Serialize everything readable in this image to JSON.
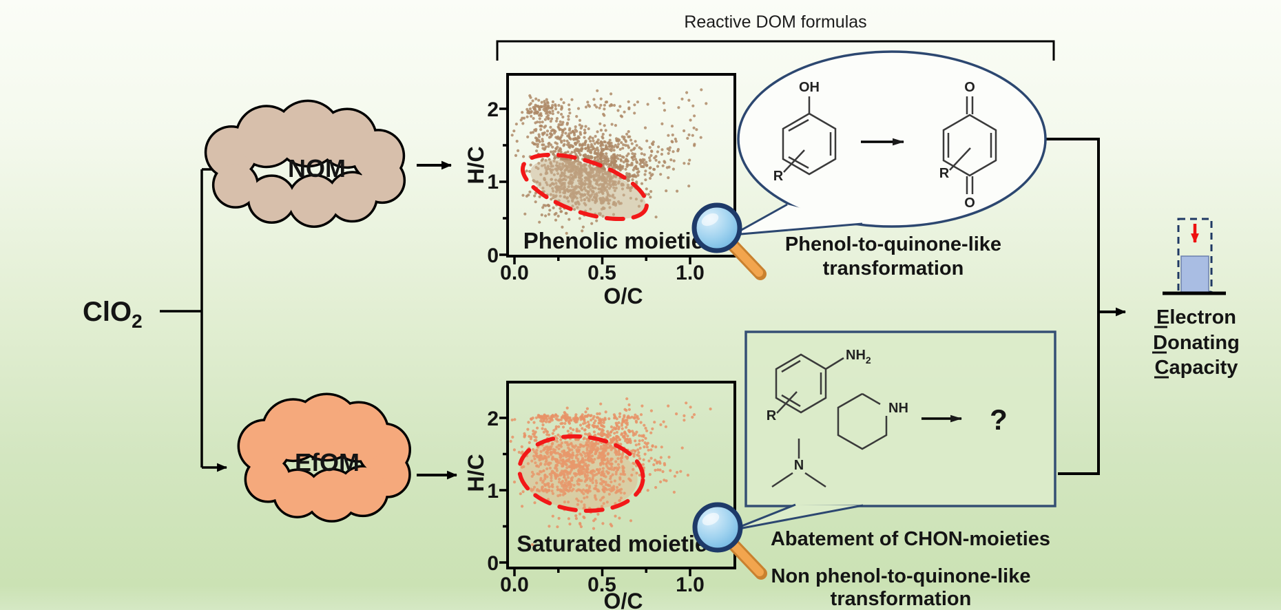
{
  "header": {
    "bracket_label": "Reactive DOM formulas"
  },
  "reagent": {
    "base": "ClO",
    "sub": "2"
  },
  "clouds": [
    {
      "id": "nom",
      "label": "NOM",
      "fill": "#d7bfab"
    },
    {
      "id": "efom",
      "label": "EfOM",
      "fill": "#f5a97c"
    }
  ],
  "edc": {
    "line1": "Electron",
    "line2": "Donating",
    "line3": "Capacity"
  },
  "callout_top": {
    "caption_line1": "Phenol-to-quinone-like",
    "caption_line2": "transformation",
    "phenol": {
      "oh": "OH",
      "r": "R"
    },
    "quinone": {
      "o_top": "O",
      "o_bottom": "O",
      "r": "R"
    }
  },
  "callout_bottom": {
    "caption1": "Abatement of CHON-moieties",
    "caption2_line1": "Non phenol-to-quinone-like",
    "caption2_line2": "transformation",
    "aniline": {
      "nh_base": "NH",
      "nh_sub": "2",
      "r": "R"
    },
    "piperidine": {
      "nh": "NH"
    },
    "amine": {
      "n": "N"
    },
    "product": "?"
  },
  "colors": {
    "accent_navy": "#2c4770",
    "red_dashed": "#f21818",
    "tan_label": "#bd9170",
    "tan_caption": "#c28c69",
    "orange_label": "#e8814f",
    "orange_caption": "#ec7b49",
    "nom_cloud": "#d7bfab",
    "efom_cloud": "#f5a97c",
    "nom_dots": "#ae8a67",
    "efom_dots": "#e79266",
    "lens_blue": "#8ec6ea",
    "handle_orange": "#f0a04f",
    "cup_blue": "#a9bde3",
    "arrow_red": "#ee1111"
  },
  "chart_data": [
    {
      "id": "nom",
      "type": "scatter",
      "title": "",
      "xlabel": "O/C",
      "ylabel": "H/C",
      "xlim": [
        0,
        1.25
      ],
      "ylim": [
        0,
        2.5
      ],
      "grid": false,
      "x_ticks": [
        "0.0",
        "0.5",
        "1.0"
      ],
      "x_tick_values": [
        0,
        0.5,
        1.0
      ],
      "x_minor": [
        0.25,
        0.75
      ],
      "y_ticks": [
        "0",
        "1",
        "2"
      ],
      "y_tick_values": [
        0,
        1,
        2
      ],
      "y_minor": [
        0.5,
        1.5
      ],
      "annotation": "Phenolic moieties",
      "dot_color": "#ae8a67",
      "seed": 42,
      "description": "Van Krevelen diagram of NOM formulas reactive toward ClO2; dense tan cloud centered near O/C 0.4, H/C 1.1 with band near H/C 2.0 at low O/C; red dashed ellipse marks phenolic region",
      "clusters": [
        {
          "n": 750,
          "cx": 0.4,
          "cy": 1.08,
          "sx": 0.155,
          "sy": 0.24
        },
        {
          "n": 200,
          "cx": 0.52,
          "cy": 1.38,
          "sx": 0.18,
          "sy": 0.17
        },
        {
          "n": 120,
          "cx": 0.24,
          "cy": 1.68,
          "sx": 0.12,
          "sy": 0.14
        },
        {
          "n": 90,
          "cx": 0.15,
          "cy": 1.98,
          "sx": 0.055,
          "sy": 0.07
        },
        {
          "n": 45,
          "cx": 0.5,
          "cy": 2.05,
          "sx": 0.14,
          "sy": 0.09
        },
        {
          "n": 50,
          "cx": 0.72,
          "cy": 1.25,
          "sx": 0.1,
          "sy": 0.22
        },
        {
          "n": 25,
          "cx": 0.92,
          "cy": 1.45,
          "sx": 0.1,
          "sy": 0.28
        },
        {
          "n": 10,
          "cx": 1.05,
          "cy": 2.1,
          "sx": 0.1,
          "sy": 0.1
        },
        {
          "n": 18,
          "cx": 0.28,
          "cy": 0.55,
          "sx": 0.08,
          "sy": 0.1
        }
      ],
      "rays": [
        {
          "x1": 0.1,
          "y1": 1.55,
          "x2": 0.48,
          "y2": 1.02,
          "n": 45
        },
        {
          "x1": 0.22,
          "y1": 1.78,
          "x2": 0.62,
          "y2": 1.15,
          "n": 40
        },
        {
          "x1": 0.5,
          "y1": 0.62,
          "x2": 0.5,
          "y2": 1.72,
          "n": 35
        },
        {
          "x1": 0.07,
          "y1": 1.03,
          "x2": 0.6,
          "y2": 0.7,
          "n": 40
        }
      ],
      "soft_ellipse": {
        "cx": 0.42,
        "cy": 0.9,
        "rx": 0.345,
        "ry": 0.32,
        "rot": 19,
        "fill": "#cbb394",
        "opacity": 0.5
      },
      "highlight_ellipse": {
        "cx": 0.4,
        "cy": 0.93,
        "rx": 0.37,
        "ry": 0.35,
        "rot": 19,
        "stroke": "#f21818"
      }
    },
    {
      "id": "efom",
      "type": "scatter",
      "title": "",
      "xlabel": "O/C",
      "ylabel": "H/C",
      "xlim": [
        0,
        1.25
      ],
      "ylim": [
        0,
        2.5
      ],
      "grid": false,
      "x_ticks": [
        "0.0",
        "0.5",
        "1.0"
      ],
      "x_tick_values": [
        0,
        0.5,
        1.0
      ],
      "x_minor": [
        0.25,
        0.75
      ],
      "y_ticks": [
        "0",
        "1",
        "2"
      ],
      "y_tick_values": [
        0,
        1,
        2
      ],
      "y_minor": [
        0.5,
        1.5
      ],
      "annotation": "Saturated moieties",
      "dot_color": "#e79266",
      "seed": 1337,
      "description": "Van Krevelen diagram of EfOM formulas reactive toward ClO2; dense orange cloud centered near O/C 0.35, H/C 1.4 with horizontal band at H/C 2.0; red dashed ellipse marks saturated region",
      "clusters": [
        {
          "n": 700,
          "cx": 0.34,
          "cy": 1.38,
          "sx": 0.16,
          "sy": 0.27
        },
        {
          "n": 200,
          "cx": 0.55,
          "cy": 1.6,
          "sx": 0.13,
          "sy": 0.22
        },
        {
          "n": 110,
          "cx": 0.3,
          "cy": 1.99,
          "sx": 0.14,
          "sy": 0.035
        },
        {
          "n": 60,
          "cx": 0.62,
          "cy": 1.9,
          "sx": 0.08,
          "sy": 0.12
        },
        {
          "n": 40,
          "cx": 0.8,
          "cy": 1.45,
          "sx": 0.09,
          "sy": 0.25
        },
        {
          "n": 25,
          "cx": 0.45,
          "cy": 0.6,
          "sx": 0.12,
          "sy": 0.1
        },
        {
          "n": 10,
          "cx": 0.95,
          "cy": 2.1,
          "sx": 0.08,
          "sy": 0.1
        }
      ],
      "rays": [
        {
          "x1": 0.5,
          "y1": 0.7,
          "x2": 0.5,
          "y2": 2.0,
          "n": 45
        },
        {
          "x1": 0.08,
          "y1": 1.0,
          "x2": 0.62,
          "y2": 1.0,
          "n": 45
        },
        {
          "x1": 0.1,
          "y1": 1.72,
          "x2": 0.62,
          "y2": 0.95,
          "n": 40
        },
        {
          "x1": 0.12,
          "y1": 0.98,
          "x2": 0.6,
          "y2": 1.75,
          "n": 40
        }
      ],
      "soft_ellipse": {
        "cx": 0.365,
        "cy": 1.21,
        "rx": 0.337,
        "ry": 0.476,
        "rot": 6,
        "fill": "#e9a275",
        "opacity": 0.35
      },
      "highlight_ellipse": {
        "cx": 0.38,
        "cy": 1.23,
        "rx": 0.353,
        "ry": 0.51,
        "rot": 6,
        "stroke": "#f21818"
      }
    }
  ]
}
